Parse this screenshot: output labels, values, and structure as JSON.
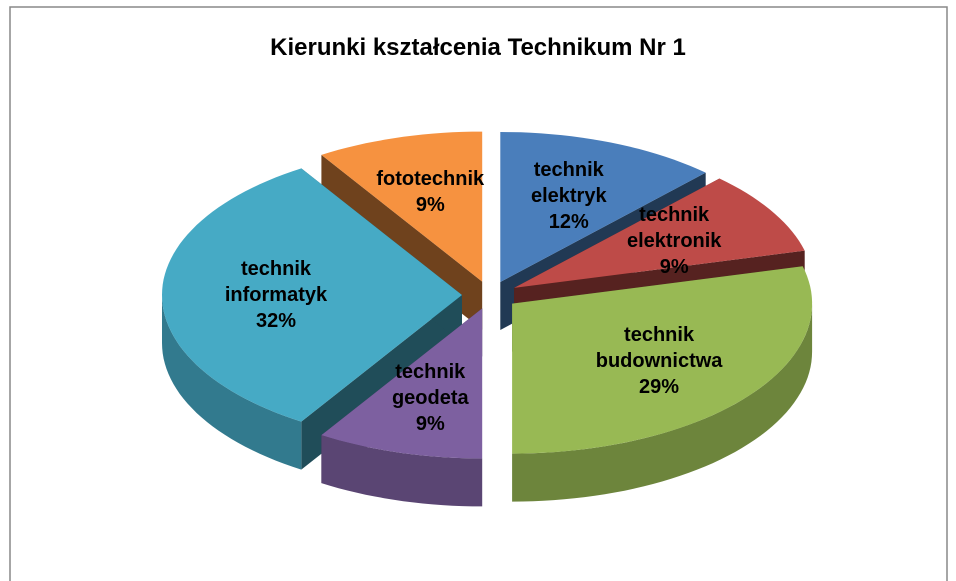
{
  "chart_data": {
    "type": "pie3d",
    "title": "Kierunki kształcenia Technikum Nr 1",
    "categories": [
      "technik elektryk",
      "technik elektronik",
      "technik budownictwa",
      "technik geodeta",
      "technik informatyk",
      "fototechnik"
    ],
    "values": [
      12,
      9,
      29,
      9,
      32,
      9
    ],
    "value_labels": [
      "12%",
      "9%",
      "29%",
      "9%",
      "32%",
      "9%"
    ],
    "colors": [
      "#4a7ebb",
      "#be4b48",
      "#98b954",
      "#7d60a0",
      "#46aac5",
      "#f69240"
    ]
  }
}
